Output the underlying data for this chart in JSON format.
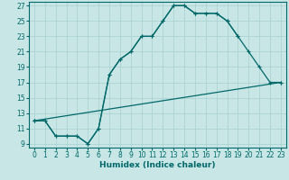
{
  "xlabel": "Humidex (Indice chaleur)",
  "background_color": "#c8e6e6",
  "grid_color": "#a8d0d0",
  "line_color": "#006868",
  "spine_color": "#006868",
  "xlim": [
    -0.5,
    23.5
  ],
  "ylim": [
    8.5,
    27.5
  ],
  "xticks": [
    0,
    1,
    2,
    3,
    4,
    5,
    6,
    7,
    8,
    9,
    10,
    11,
    12,
    13,
    14,
    15,
    16,
    17,
    18,
    19,
    20,
    21,
    22,
    23
  ],
  "yticks": [
    9,
    11,
    13,
    15,
    17,
    19,
    21,
    23,
    25,
    27
  ],
  "line1_x": [
    0,
    1,
    2,
    3,
    4,
    5,
    6,
    7,
    8,
    9,
    10,
    11,
    12,
    13,
    14,
    15,
    16,
    17,
    18,
    19
  ],
  "line1_y": [
    12,
    12,
    10,
    10,
    10,
    9,
    11,
    18,
    20,
    21,
    23,
    23,
    25,
    27,
    27,
    26,
    26,
    26,
    25,
    23
  ],
  "line2_x": [
    0,
    1,
    2,
    3,
    4,
    5,
    6,
    7,
    8,
    9,
    10,
    11,
    12,
    13,
    14,
    15,
    16,
    17,
    18,
    19,
    20,
    21,
    22,
    23
  ],
  "line2_y": [
    12,
    12,
    10,
    10,
    10,
    9,
    11,
    18,
    20,
    21,
    23,
    23,
    25,
    27,
    27,
    26,
    26,
    26,
    25,
    23,
    21,
    19,
    17,
    17
  ],
  "line3_x": [
    0,
    23
  ],
  "line3_y": [
    12,
    17
  ],
  "tick_fontsize": 5.5,
  "xlabel_fontsize": 6.5,
  "marker_size": 3,
  "line_width": 0.9
}
